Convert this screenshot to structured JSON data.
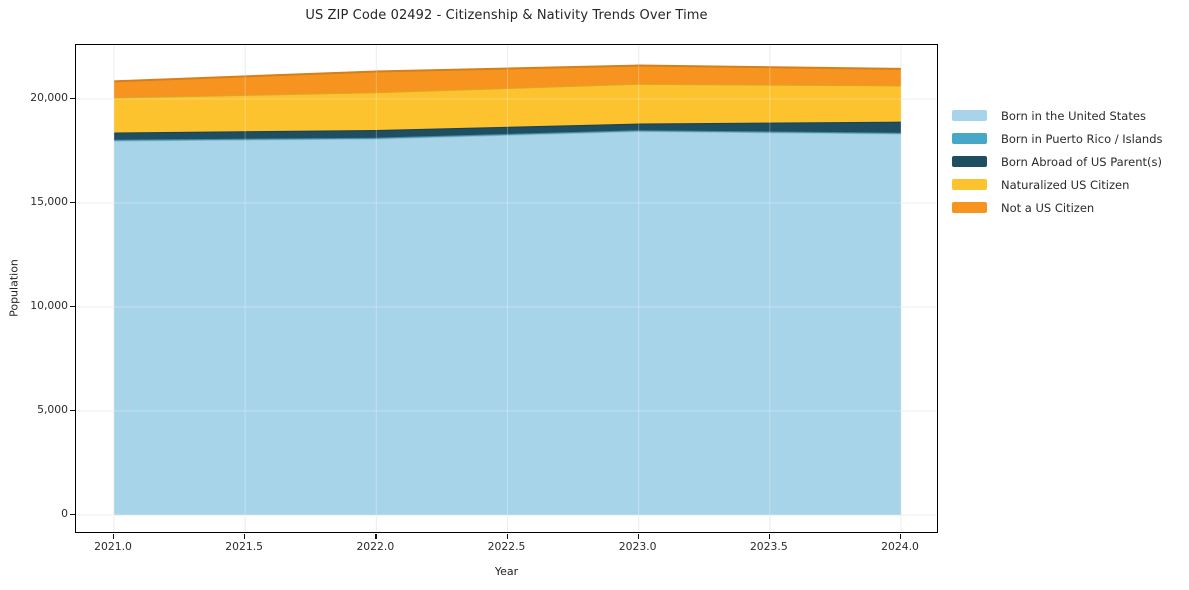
{
  "title": "US ZIP Code 02492 - Citizenship & Nativity Trends Over Time",
  "chart_data": {
    "type": "area",
    "stacked": true,
    "title": "US ZIP Code 02492 - Citizenship & Nativity Trends Over Time",
    "xlabel": "Year",
    "ylabel": "Population",
    "x": [
      2021,
      2022,
      2023,
      2024
    ],
    "series": [
      {
        "name": "Born in the United States",
        "color": "#A8D4E9",
        "values": [
          18000,
          18100,
          18460,
          18340
        ]
      },
      {
        "name": "Born in Puerto Rico / Islands",
        "color": "#47A7C6",
        "values": [
          40,
          40,
          40,
          40
        ]
      },
      {
        "name": "Born Abroad of US Parent(s)",
        "color": "#1F4E60",
        "values": [
          350,
          370,
          320,
          530
        ]
      },
      {
        "name": "Naturalized US Citizen",
        "color": "#FDC32F",
        "values": [
          1680,
          1815,
          1910,
          1740
        ]
      },
      {
        "name": "Not a US Citizen",
        "color": "#F6941F",
        "values": [
          780,
          1000,
          880,
          800
        ]
      }
    ],
    "totals": [
      20850,
      21325,
      21610,
      21450
    ],
    "xlim": [
      2020.86,
      2024.14
    ],
    "ylim": [
      -900,
      22600
    ],
    "xticks": {
      "values": [
        2021.0,
        2021.5,
        2022.0,
        2022.5,
        2023.0,
        2023.5,
        2024.0
      ],
      "labels": [
        "2021.0",
        "2021.5",
        "2022.0",
        "2022.5",
        "2023.0",
        "2023.5",
        "2024.0"
      ]
    },
    "yticks": {
      "values": [
        0,
        5000,
        10000,
        15000,
        20000
      ],
      "labels": [
        "0",
        "5,000",
        "10,000",
        "15,000",
        "20,000"
      ]
    },
    "grid": true,
    "legend_position": "right-outside"
  }
}
